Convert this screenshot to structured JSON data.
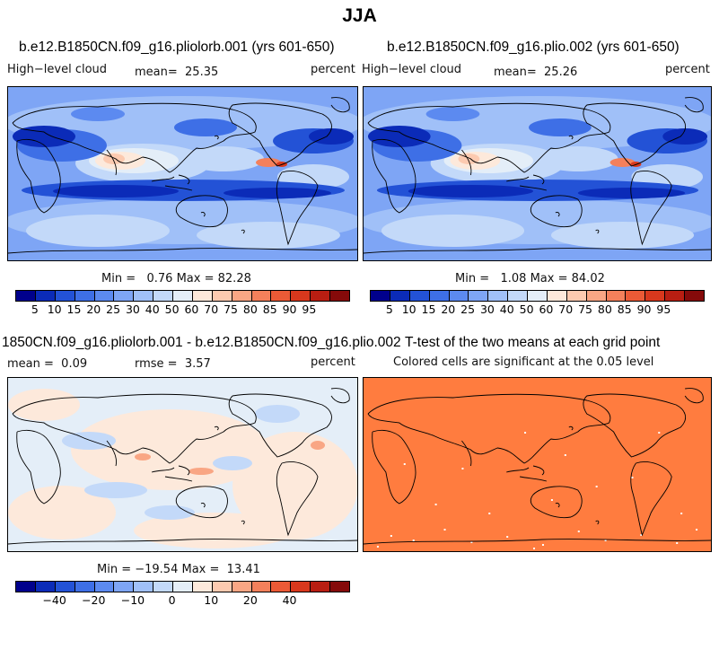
{
  "figure": {
    "title": "JJA"
  },
  "panels": [
    {
      "id": "p1",
      "title": "b.e12.B1850CN.f09_g16.pliolorb.001 (yrs 601-650)",
      "variable": "High−level cloud",
      "mean_label": "mean=",
      "mean": "25.35",
      "units": "percent",
      "min_label": "Min =",
      "min": "0.76",
      "max_label": "Max =",
      "max": "82.28"
    },
    {
      "id": "p2",
      "title": "b.e12.B1850CN.f09_g16.plio.002 (yrs 601-650)",
      "variable": "High−level cloud",
      "mean_label": "mean=",
      "mean": "25.26",
      "units": "percent",
      "min_label": "Min =",
      "min": "1.08",
      "max_label": "Max =",
      "max": "84.02"
    },
    {
      "id": "p3",
      "title": "1850CN.f09_g16.pliolorb.001 - b.e12.B1850CN.f09_g16.plio.002",
      "mean_label": "mean =",
      "mean": "0.09",
      "rmse_label": "rmse =",
      "rmse": "3.57",
      "units": "percent",
      "min_label": "Min =",
      "min": "−19.54",
      "max_label": "Max =",
      "max": "13.41"
    },
    {
      "id": "p4",
      "title": "T-test of the two means at each grid point",
      "subtitle": "Colored cells are significant at the 0.05 level"
    }
  ],
  "colors": {
    "scale": [
      "#00008c",
      "#0b2bb8",
      "#2352d6",
      "#3e6fe6",
      "#5c8af0",
      "#7ea5f5",
      "#a0c0f8",
      "#c3d9f9",
      "#e4eef8",
      "#fde9db",
      "#fccab0",
      "#f9a684",
      "#f4805b",
      "#eb5a36",
      "#d8381d",
      "#b81e12",
      "#850a0a"
    ],
    "ttest_fill": "#ff7c3f"
  },
  "colorbars": [
    {
      "id": "abs",
      "labels": [
        "5",
        "10",
        "15",
        "20",
        "25",
        "30",
        "40",
        "50",
        "60",
        "70",
        "75",
        "80",
        "85",
        "90",
        "95"
      ]
    },
    {
      "id": "diff",
      "labels": [
        "−40",
        "−20",
        "−10",
        "0",
        "10",
        "20",
        "40"
      ]
    }
  ],
  "chart_data": [
    {
      "type": "heatmap",
      "title": "b.e12.B1850CN.f09_g16.pliolorb.001 (yrs 601-650)",
      "variable": "High-level cloud",
      "units": "percent",
      "mean": 25.35,
      "min": 0.76,
      "max": 82.28,
      "levels": [
        5,
        10,
        15,
        20,
        25,
        30,
        40,
        50,
        60,
        70,
        75,
        80,
        85,
        90,
        95
      ]
    },
    {
      "type": "heatmap",
      "title": "b.e12.B1850CN.f09_g16.plio.002 (yrs 601-650)",
      "variable": "High-level cloud",
      "units": "percent",
      "mean": 25.26,
      "min": 1.08,
      "max": 84.02,
      "levels": [
        5,
        10,
        15,
        20,
        25,
        30,
        40,
        50,
        60,
        70,
        75,
        80,
        85,
        90,
        95
      ]
    },
    {
      "type": "heatmap",
      "title": "1850CN.f09_g16.pliolorb.001 - b.e12.B1850CN.f09_g16.plio.002",
      "units": "percent",
      "mean": 0.09,
      "rmse": 3.57,
      "min": -19.54,
      "max": 13.41,
      "levels": [
        -40,
        -30,
        -20,
        -15,
        -10,
        -5,
        0,
        5,
        10,
        15,
        20,
        30,
        40
      ]
    },
    {
      "type": "heatmap",
      "title": "T-test of the two means at each grid point",
      "note": "Colored cells are significant at the 0.05 level"
    }
  ]
}
